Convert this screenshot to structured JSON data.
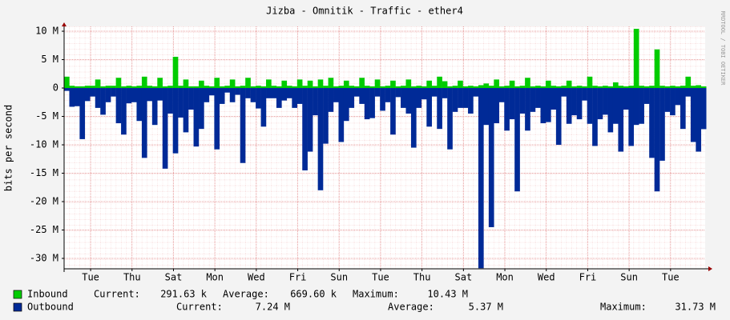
{
  "chart_data": {
    "type": "bar",
    "title": "Jizba - Omnitik - Traffic - ether4",
    "y_label": "bits per second",
    "watermark": "RRDTOOL / TOBI OETIKER",
    "grid": true,
    "xlim": [
      0,
      30.95
    ],
    "xticks": [
      {
        "value": 1.28,
        "label": "Tue"
      },
      {
        "value": 3.28,
        "label": "Thu"
      },
      {
        "value": 5.28,
        "label": "Sat"
      },
      {
        "value": 7.28,
        "label": "Mon"
      },
      {
        "value": 9.28,
        "label": "Wed"
      },
      {
        "value": 11.28,
        "label": "Fri"
      },
      {
        "value": 13.28,
        "label": "Sun"
      },
      {
        "value": 15.28,
        "label": "Tue"
      },
      {
        "value": 17.28,
        "label": "Thu"
      },
      {
        "value": 19.28,
        "label": "Sat"
      },
      {
        "value": 21.28,
        "label": "Mon"
      },
      {
        "value": 23.28,
        "label": "Wed"
      },
      {
        "value": 25.28,
        "label": "Fri"
      },
      {
        "value": 27.28,
        "label": "Sun"
      },
      {
        "value": 29.28,
        "label": "Tue"
      }
    ],
    "ylim": [
      -31.83,
      10.85
    ],
    "yticks": [
      {
        "value": 10,
        "label": "10 M"
      },
      {
        "value": 5,
        "label": "5 M"
      },
      0,
      {
        "value": -5,
        "label": "-5 M"
      },
      {
        "value": -10,
        "label": "-10 M"
      },
      {
        "value": -15,
        "label": "-15 M"
      },
      {
        "value": -20,
        "label": "-20 M"
      },
      {
        "value": -25,
        "label": "-25 M"
      },
      {
        "value": -30,
        "label": "-30 M"
      }
    ],
    "x": [
      0,
      0.25,
      0.5,
      0.75,
      1,
      1.25,
      1.5,
      1.75,
      2,
      2.25,
      2.5,
      2.75,
      3,
      3.25,
      3.5,
      3.75,
      4,
      4.25,
      4.5,
      4.75,
      5,
      5.25,
      5.5,
      5.75,
      6,
      6.25,
      6.5,
      6.75,
      7,
      7.25,
      7.5,
      7.75,
      8,
      8.25,
      8.5,
      8.75,
      9,
      9.25,
      9.5,
      9.75,
      10,
      10.25,
      10.5,
      10.75,
      11,
      11.25,
      11.5,
      11.75,
      12,
      12.25,
      12.5,
      12.75,
      13,
      13.25,
      13.5,
      13.75,
      14,
      14.25,
      14.5,
      14.75,
      15,
      15.25,
      15.5,
      15.75,
      16,
      16.25,
      16.5,
      16.75,
      17,
      17.25,
      17.5,
      17.75,
      18,
      18.25,
      18.5,
      18.75,
      19,
      19.25,
      19.5,
      19.75,
      20,
      20.25,
      20.5,
      20.75,
      21,
      21.25,
      21.5,
      21.75,
      22,
      22.25,
      22.5,
      22.75,
      23,
      23.25,
      23.5,
      23.75,
      24,
      24.25,
      24.5,
      24.75,
      25,
      25.25,
      25.5,
      25.75,
      26,
      26.25,
      26.5,
      26.75,
      27,
      27.25,
      27.5,
      27.75,
      28,
      28.25,
      28.5,
      28.75,
      29,
      29.25,
      29.5,
      29.75,
      30,
      30.25,
      30.5,
      30.75
    ],
    "series": [
      {
        "name": "Inbound",
        "color": "#00cc00",
        "stats": [
          {
            "label": "Current:",
            "value": "291.63 k"
          },
          {
            "label": "Average:",
            "value": "669.60 k"
          },
          {
            "label": "Maximum:",
            "value": "10.43 M"
          }
        ],
        "values": [
          2,
          0.4,
          0.3,
          0.3,
          0.4,
          0.4,
          1.5,
          0.3,
          0.4,
          0.4,
          1.8,
          0.3,
          0.4,
          0.3,
          0.4,
          2,
          0.4,
          0.3,
          1.8,
          0.3,
          0.4,
          5.5,
          0.4,
          1.5,
          0.3,
          0.3,
          1.3,
          0.4,
          0.3,
          1.8,
          0.3,
          0.4,
          1.5,
          0.3,
          0.4,
          1.8,
          0.3,
          0.4,
          0.3,
          1.5,
          0.4,
          0.3,
          1.3,
          0.4,
          0.3,
          1.5,
          0.4,
          1.3,
          0.3,
          1.5,
          0.4,
          1.8,
          0.3,
          0.4,
          1.3,
          0.4,
          0.3,
          1.8,
          0.4,
          0.3,
          1.5,
          0.3,
          0.4,
          1.3,
          0.3,
          0.4,
          1.5,
          0.3,
          0.4,
          0.3,
          1.3,
          0.4,
          2,
          1.2,
          0.3,
          0.4,
          1.3,
          0.3,
          0.4,
          0.3,
          0.5,
          0.8,
          0.4,
          1.5,
          0.3,
          0.4,
          1.3,
          0.3,
          0.4,
          1.8,
          0.3,
          0.4,
          0.3,
          1.3,
          0.4,
          0.3,
          0.4,
          1.3,
          0.3,
          0.4,
          0.3,
          2,
          0.4,
          0.3,
          0.4,
          0.3,
          1,
          0.4,
          0.3,
          0.4,
          10.43,
          0.4,
          0.3,
          0.4,
          6.8,
          0.4,
          0.3,
          0.4,
          0.3,
          0.4,
          2,
          0.4,
          0.5,
          0.29
        ]
      },
      {
        "name": "Outbound",
        "color": "#002a97",
        "stats": [
          {
            "label": "Current:",
            "value": "7.24 M"
          },
          {
            "label": "Average:",
            "value": "5.37 M"
          },
          {
            "label": "Maximum:",
            "value": "31.73 M"
          }
        ],
        "values": [
          -0.5,
          -3.3,
          -3.2,
          -9,
          -2.3,
          -1.5,
          -3.5,
          -4.7,
          -2.5,
          -1.5,
          -6.2,
          -8.2,
          -2.7,
          -2.5,
          -5.8,
          -12.3,
          -2.3,
          -6.5,
          -2.2,
          -14.2,
          -4.5,
          -11.5,
          -5.2,
          -7.8,
          -3.8,
          -10.3,
          -7.2,
          -2.5,
          -1.3,
          -10.8,
          -2.8,
          -0.8,
          -2.5,
          -1.2,
          -13.2,
          -1.8,
          -2.5,
          -3.6,
          -6.8,
          -1.8,
          -1.8,
          -3.5,
          -2.2,
          -1.8,
          -3.5,
          -2.8,
          -14.5,
          -11.2,
          -4.8,
          -18,
          -9.8,
          -4.2,
          -2.5,
          -9.5,
          -5.8,
          -3.5,
          -1.5,
          -2.8,
          -5.5,
          -5.3,
          -1.5,
          -4,
          -2.5,
          -8.2,
          -1.6,
          -3.5,
          -4.5,
          -10.5,
          -3.5,
          -2,
          -6.8,
          -1.5,
          -7.2,
          -1.8,
          -10.8,
          -4.2,
          -3.5,
          -3.5,
          -4.5,
          -1.5,
          -31.73,
          -6.5,
          -24.5,
          -6.2,
          -2.5,
          -7.5,
          -5.5,
          -18.2,
          -4.5,
          -7.5,
          -4.2,
          -3.5,
          -6.2,
          -6,
          -3.8,
          -10,
          -1.5,
          -6.3,
          -4.8,
          -5.5,
          -2.2,
          -6.3,
          -10.2,
          -5.5,
          -4.7,
          -7.8,
          -6.3,
          -11.2,
          -3.8,
          -10.2,
          -6.5,
          -6.3,
          -2.8,
          -12.3,
          -18.2,
          -12.8,
          -4.2,
          -4.8,
          -3,
          -7.2,
          -1.5,
          -9.5,
          -11.2,
          -7.24
        ]
      }
    ]
  }
}
